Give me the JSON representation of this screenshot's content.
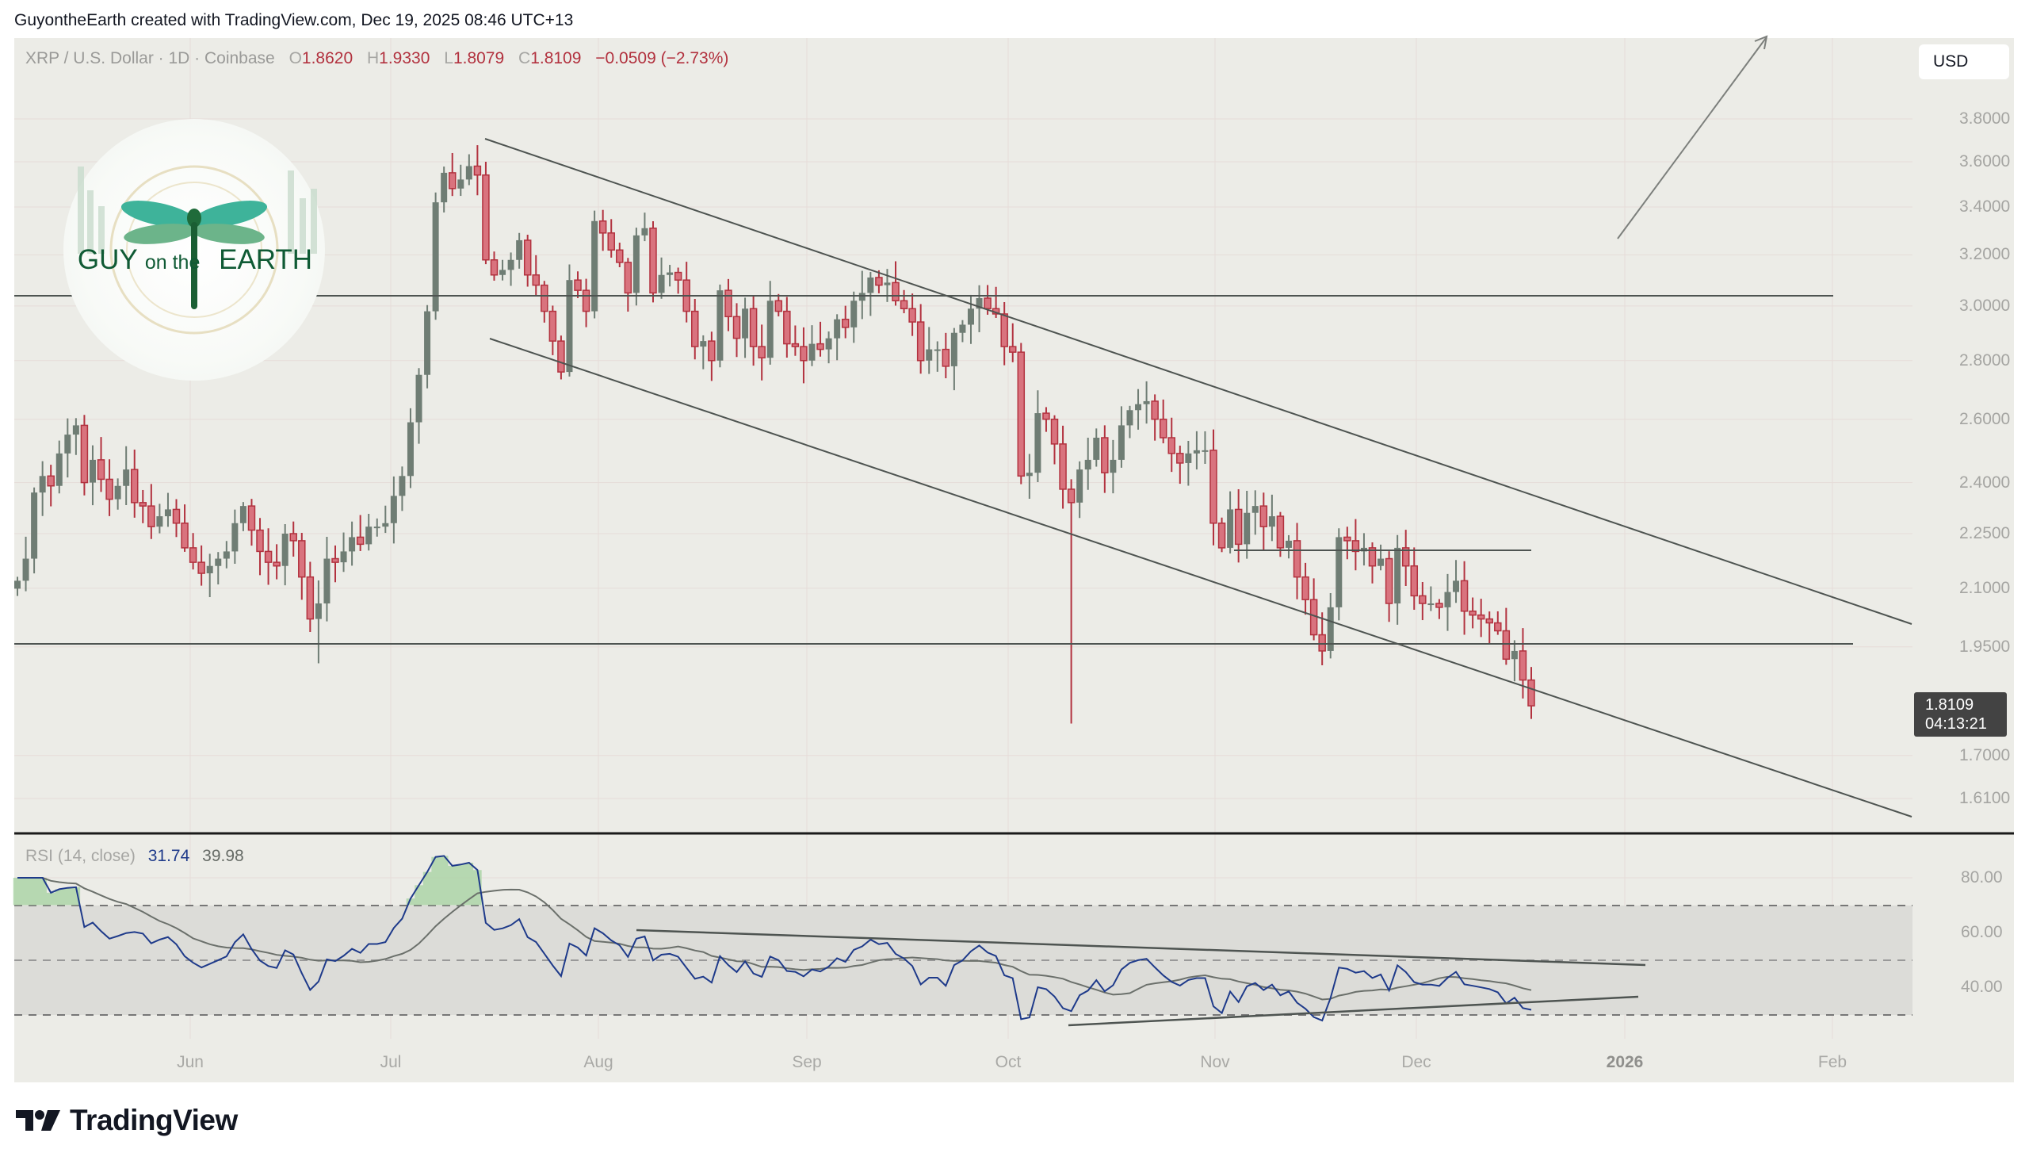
{
  "attribution": "GuyontheEarth created with TradingView.com, Dec 19, 2025 08:46 UTC+13",
  "symbol_legend": {
    "title": "XRP / U.S. Dollar · 1D · Coinbase",
    "open_label": "O",
    "open": "1.8620",
    "high_label": "H",
    "high": "1.9330",
    "low_label": "L",
    "low": "1.8079",
    "close_label": "C",
    "close": "1.8109",
    "change": "−0.0509 (−2.73%)"
  },
  "currency_button": "USD",
  "last_price": {
    "value": "1.8109",
    "countdown": "04:13:21"
  },
  "price_axis": [
    "3.8000",
    "3.6000",
    "3.4000",
    "3.2000",
    "3.0000",
    "2.8000",
    "2.6000",
    "2.4000",
    "2.2500",
    "2.1000",
    "1.9500",
    "1.7000",
    "1.6100"
  ],
  "rsi_legend": {
    "title": "RSI (14, close)",
    "rsi": "31.74",
    "ma": "39.98"
  },
  "rsi_axis": [
    "80.00",
    "60.00",
    "40.00"
  ],
  "time_axis": [
    "Jun",
    "Jul",
    "Aug",
    "Sep",
    "Oct",
    "Nov",
    "Dec",
    "2026",
    "Feb"
  ],
  "logo": {
    "line1_a": "GUY",
    "line1_b": "on the",
    "line1_c": "EARTH"
  },
  "brand": "TradingView",
  "colors": {
    "up": "#6f7d74",
    "down": "#d9737e",
    "down_border": "#b2323f",
    "rsi": "#1e3a8a",
    "rsi_ma": "#6b706b",
    "background": "#ecece7"
  },
  "chart_data": [
    {
      "type": "candlestick",
      "title": "XRP / U.S. Dollar · 1D · Coinbase",
      "ylabel": "USD",
      "scale": "log",
      "ylim": [
        1.55,
        3.95
      ],
      "x_ticks": [
        "Jun",
        "Jul",
        "Aug",
        "Sep",
        "Oct",
        "Nov",
        "Dec",
        "2026",
        "Feb"
      ],
      "y_ticks": [
        3.8,
        3.6,
        3.4,
        3.2,
        3.0,
        2.8,
        2.6,
        2.4,
        2.25,
        2.1,
        1.95,
        1.7,
        1.61
      ],
      "candles_note": "approximate daily closes read from chart, May–Dec 18 2025",
      "closes": [
        2.12,
        2.18,
        2.37,
        2.42,
        2.39,
        2.49,
        2.55,
        2.58,
        2.4,
        2.47,
        2.41,
        2.35,
        2.39,
        2.44,
        2.34,
        2.33,
        2.27,
        2.3,
        2.32,
        2.28,
        2.21,
        2.17,
        2.14,
        2.16,
        2.18,
        2.2,
        2.28,
        2.33,
        2.26,
        2.2,
        2.17,
        2.16,
        2.25,
        2.23,
        2.13,
        2.02,
        2.06,
        2.18,
        2.17,
        2.2,
        2.24,
        2.22,
        2.27,
        2.27,
        2.28,
        2.36,
        2.42,
        2.59,
        2.75,
        2.98,
        3.42,
        3.55,
        3.48,
        3.52,
        3.58,
        3.54,
        3.18,
        3.12,
        3.14,
        3.18,
        3.26,
        3.12,
        3.08,
        2.98,
        2.87,
        2.76,
        3.1,
        3.06,
        2.98,
        3.34,
        3.29,
        3.22,
        3.17,
        3.05,
        3.28,
        3.31,
        3.05,
        3.12,
        3.13,
        3.1,
        2.98,
        2.85,
        2.87,
        2.8,
        3.06,
        2.96,
        2.88,
        2.99,
        2.85,
        2.81,
        3.02,
        2.98,
        2.86,
        2.85,
        2.8,
        2.86,
        2.84,
        2.88,
        2.95,
        2.92,
        3.02,
        3.05,
        3.11,
        3.08,
        3.09,
        3.02,
        2.99,
        2.94,
        2.8,
        2.84,
        2.84,
        2.78,
        2.9,
        2.93,
        2.99,
        3.03,
        2.99,
        2.97,
        2.85,
        2.83,
        2.42,
        2.43,
        2.62,
        2.6,
        2.52,
        2.38,
        2.34,
        2.44,
        2.47,
        2.54,
        2.43,
        2.47,
        2.58,
        2.63,
        2.65,
        2.66,
        2.6,
        2.54,
        2.49,
        2.46,
        2.49,
        2.5,
        2.5,
        2.28,
        2.21,
        2.32,
        2.22,
        2.31,
        2.33,
        2.27,
        2.3,
        2.21,
        2.23,
        2.13,
        2.07,
        1.98,
        1.94,
        2.05,
        2.24,
        2.23,
        2.2,
        2.21,
        2.16,
        2.18,
        2.06,
        2.21,
        2.16,
        2.08,
        2.06,
        2.06,
        2.05,
        2.09,
        2.12,
        2.04,
        2.03,
        2.02,
        2.01,
        1.99,
        1.92,
        1.94,
        1.87,
        1.81
      ],
      "lines": [
        {
          "name": "descending channel upper",
          "from": [
            "Jul 17",
            3.68
          ],
          "to": [
            "Feb 1 2026",
            2.0
          ]
        },
        {
          "name": "descending channel lower",
          "from": [
            "Jul 17",
            2.89
          ],
          "to": [
            "Feb 1 2026",
            1.58
          ]
        },
        {
          "name": "horizontal resistance",
          "value": 3.03
        },
        {
          "name": "horizontal support",
          "value": 1.95
        },
        {
          "name": "short horizontal",
          "value": 2.21,
          "from": "Nov 4",
          "to": "Dec 20"
        },
        {
          "name": "arrow up",
          "from": [
            "Dec 26",
            3.3
          ],
          "to": [
            "Jan 8",
            4.0
          ]
        }
      ]
    },
    {
      "type": "line",
      "title": "RSI (14, close)",
      "ylim": [
        20,
        90
      ],
      "y_ticks": [
        80,
        60,
        40
      ],
      "bands": {
        "upper": 70,
        "middle": 50,
        "lower": 30
      },
      "series": [
        {
          "name": "RSI",
          "last": 31.74
        },
        {
          "name": "RSI-based MA",
          "last": 39.98
        }
      ],
      "trendlines": [
        {
          "name": "upper",
          "from": [
            "Aug 2",
            62
          ],
          "to": [
            "Dec 28",
            48
          ]
        },
        {
          "name": "lower",
          "from": [
            "Oct 10",
            26
          ],
          "to": [
            "Dec 27",
            36.5
          ]
        }
      ]
    }
  ]
}
